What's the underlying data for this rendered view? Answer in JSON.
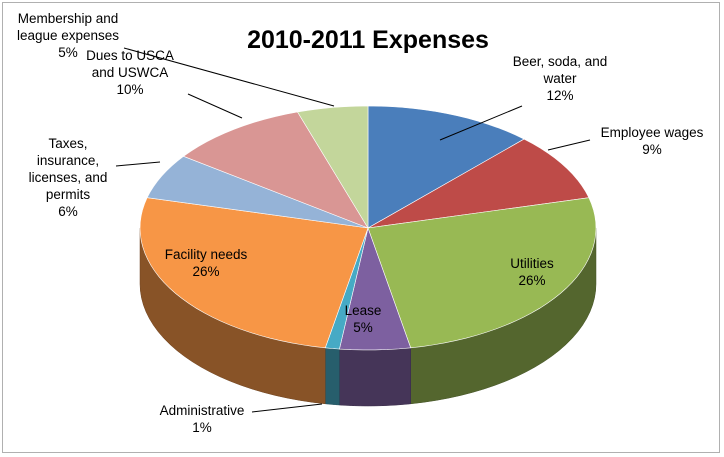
{
  "chart_data": {
    "type": "pie",
    "title": "2010-2011 Expenses",
    "three_d": true,
    "slices": [
      {
        "label": "Beer, soda, and water",
        "label_lines": [
          "Beer, soda, and",
          "water"
        ],
        "pct_label": "12%",
        "value": 12,
        "color": "#4a7ebb"
      },
      {
        "label": "Employee wages",
        "label_lines": [
          "Employee wages"
        ],
        "pct_label": "9%",
        "value": 9,
        "color": "#be4b48"
      },
      {
        "label": "Utilities",
        "label_lines": [
          "Utilities"
        ],
        "pct_label": "26%",
        "value": 26,
        "color": "#98b954"
      },
      {
        "label": "Lease",
        "label_lines": [
          "Lease"
        ],
        "pct_label": "5%",
        "value": 5,
        "color": "#7d60a0"
      },
      {
        "label": "Administrative",
        "label_lines": [
          "Administrative"
        ],
        "pct_label": "1%",
        "value": 1,
        "color": "#46aac5"
      },
      {
        "label": "Facility needs",
        "label_lines": [
          "Facility needs"
        ],
        "pct_label": "26%",
        "value": 26,
        "color": "#f79646"
      },
      {
        "label": "Taxes, insurance, licenses, and permits",
        "label_lines": [
          "Taxes,",
          "insurance,",
          "licenses, and",
          "permits"
        ],
        "pct_label": "6%",
        "value": 6,
        "color": "#95b3d7"
      },
      {
        "label": "Dues to USCA and USWCA",
        "label_lines": [
          "Dues to USCA",
          "and USWCA"
        ],
        "pct_label": "10%",
        "value": 10,
        "color": "#d99694"
      },
      {
        "label": "Membership and league expenses",
        "label_lines": [
          "Membership and",
          "league expenses"
        ],
        "pct_label": "5%",
        "value": 5,
        "color": "#c3d69b"
      }
    ]
  }
}
